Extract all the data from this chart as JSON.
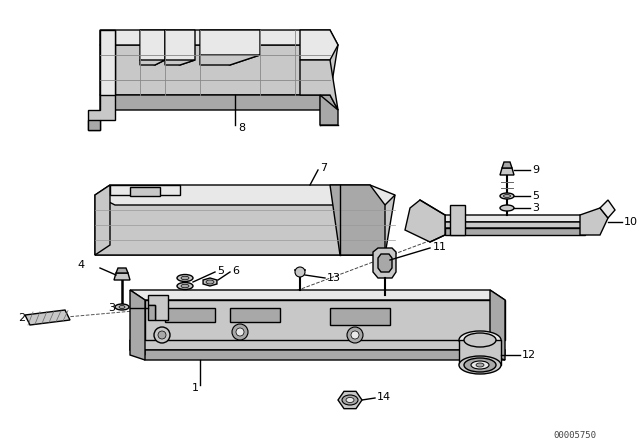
{
  "background_color": "#ffffff",
  "line_color": "#000000",
  "part_fill_light": "#e8e8e8",
  "part_fill_mid": "#c8c8c8",
  "part_fill_dark": "#a8a8a8",
  "part_edge_color": "#000000",
  "diagram_id": "00005750",
  "lw": 1.0,
  "fontsize": 8.0
}
